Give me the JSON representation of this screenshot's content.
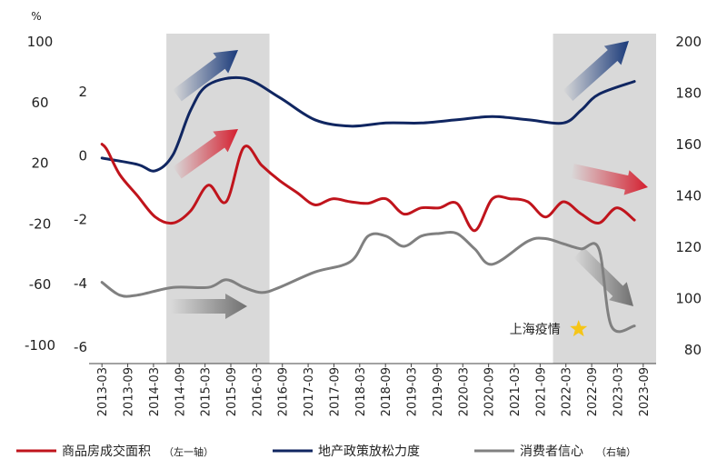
{
  "chart_data": {
    "type": "line",
    "unit_label": "%",
    "left_axis_outer": {
      "ticks": [
        100,
        60,
        20,
        -20,
        -60,
        -100
      ],
      "range": [
        -100,
        100
      ]
    },
    "left_axis_inner": {
      "ticks": [
        2,
        0,
        -2,
        -4,
        -6
      ],
      "range": [
        -6,
        3.6
      ]
    },
    "right_axis": {
      "ticks": [
        200,
        180,
        160,
        140,
        120,
        100,
        80
      ],
      "range": [
        80,
        200
      ]
    },
    "x_tick_labels": [
      "2013-03",
      "2013-09",
      "2014-03",
      "2014-09",
      "2015-03",
      "2015-09",
      "2016-03",
      "2016-09",
      "2017-03",
      "2017-09",
      "2018-03",
      "2018-09",
      "2019-03",
      "2019-09",
      "2020-03",
      "2020-09",
      "2021-03",
      "2021-09",
      "2022-03",
      "2022-09",
      "2023-03",
      "2023-09"
    ],
    "shaded_periods": [
      {
        "from": "2014-09",
        "to": "2016-03"
      },
      {
        "from": "2022-03",
        "to": "2023-09"
      }
    ],
    "series": [
      {
        "name": "商品房成交面积",
        "name_suffix": "（左一轴）",
        "axis": "left_outer",
        "color": "#c0141c",
        "points": [
          [
            0,
            32
          ],
          [
            0.3,
            28
          ],
          [
            1,
            12
          ],
          [
            2,
            -2
          ],
          [
            3,
            -16
          ],
          [
            4,
            -20
          ],
          [
            5,
            -12
          ],
          [
            6,
            5
          ],
          [
            7,
            -6
          ],
          [
            8,
            30
          ],
          [
            9,
            18
          ],
          [
            10,
            8
          ],
          [
            11,
            0
          ],
          [
            12,
            -8
          ],
          [
            13,
            -4
          ],
          [
            14,
            -6
          ],
          [
            15,
            -7
          ],
          [
            16,
            -4
          ],
          [
            17,
            -14
          ],
          [
            18,
            -10
          ],
          [
            19,
            -10
          ],
          [
            20,
            -7
          ],
          [
            21,
            -25
          ],
          [
            22,
            -4
          ],
          [
            23,
            -4
          ],
          [
            24,
            -6
          ],
          [
            25,
            -16
          ],
          [
            26,
            -6
          ],
          [
            27,
            -14
          ],
          [
            28,
            -20
          ],
          [
            29,
            -10
          ],
          [
            30,
            -18
          ]
        ]
      },
      {
        "name": "地产政策放松力度",
        "axis": "left_inner",
        "color": "#102661",
        "points": [
          [
            0,
            -0.1
          ],
          [
            2,
            -0.3
          ],
          [
            3,
            -0.5
          ],
          [
            4,
            0
          ],
          [
            5,
            1.4
          ],
          [
            6,
            2.2
          ],
          [
            8,
            2.4
          ],
          [
            10,
            1.8
          ],
          [
            12,
            1.1
          ],
          [
            14,
            0.9
          ],
          [
            16,
            1
          ],
          [
            18,
            1
          ],
          [
            20,
            1.1
          ],
          [
            22,
            1.2
          ],
          [
            24,
            1.1
          ],
          [
            26,
            1
          ],
          [
            27,
            1.4
          ],
          [
            28,
            1.9
          ],
          [
            30,
            2.3
          ]
        ]
      },
      {
        "name": "消费者信心",
        "name_suffix": "（右轴）",
        "axis": "right",
        "color": "#808080",
        "points": [
          [
            0,
            106
          ],
          [
            1,
            101
          ],
          [
            2,
            101
          ],
          [
            4,
            104
          ],
          [
            6,
            104
          ],
          [
            7,
            107
          ],
          [
            8,
            104
          ],
          [
            9,
            102
          ],
          [
            10,
            104
          ],
          [
            12,
            110
          ],
          [
            14,
            114
          ],
          [
            15,
            124
          ],
          [
            16,
            124
          ],
          [
            17,
            120
          ],
          [
            18,
            124
          ],
          [
            19,
            125
          ],
          [
            20,
            125
          ],
          [
            21,
            119
          ],
          [
            22,
            113
          ],
          [
            24,
            122
          ],
          [
            25,
            123
          ],
          [
            26,
            121
          ],
          [
            27,
            119
          ],
          [
            28,
            119
          ],
          [
            28.7,
            89
          ],
          [
            30,
            89
          ]
        ]
      }
    ],
    "annotations": [
      {
        "text": "上海疫情",
        "at": "2022-03",
        "marker": "star",
        "star_color": "#f5c518"
      }
    ],
    "legend_position": "bottom"
  }
}
